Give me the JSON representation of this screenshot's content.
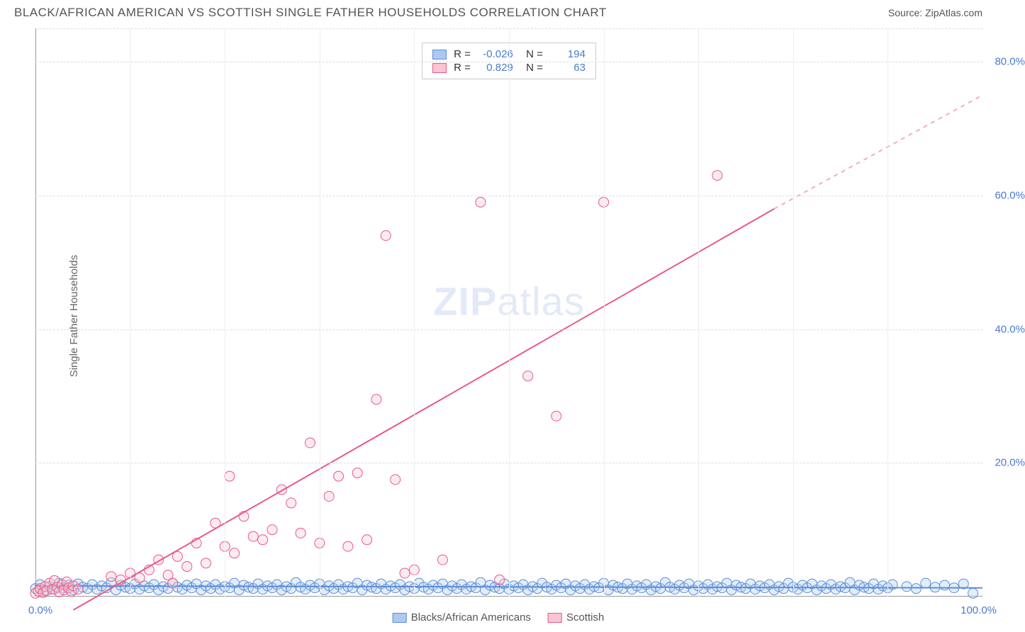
{
  "title": "BLACK/AFRICAN AMERICAN VS SCOTTISH SINGLE FATHER HOUSEHOLDS CORRELATION CHART",
  "source": "Source: ZipAtlas.com",
  "watermark_zip": "ZIP",
  "watermark_atlas": "atlas",
  "ylabel": "Single Father Households",
  "chart": {
    "type": "scatter",
    "xlim": [
      0,
      100
    ],
    "ylim": [
      0,
      85
    ],
    "y_ticks": [
      20,
      40,
      60,
      80
    ],
    "y_tick_labels": [
      "20.0%",
      "40.0%",
      "60.0%",
      "80.0%"
    ],
    "x_vgrid_step": 10,
    "x_min_label": "0.0%",
    "x_max_label": "100.0%",
    "background_color": "#ffffff",
    "grid_color": "#dddddd",
    "axis_label_color": "#4a7bd0",
    "marker_radius": 7,
    "marker_opacity": 0.35,
    "trend_line_width": 2,
    "series": [
      {
        "name": "Blacks/African Americans",
        "color_fill": "#aec9ef",
        "color_stroke": "#5b8fd6",
        "R": "-0.026",
        "N": "194",
        "trend": {
          "x1": 0,
          "y1": 1.6,
          "x2": 100,
          "y2": 1.3,
          "dashed": false
        },
        "points": [
          [
            0,
            1.2
          ],
          [
            0.5,
            1.8
          ],
          [
            1,
            0.9
          ],
          [
            1.5,
            1.5
          ],
          [
            2,
            1.1
          ],
          [
            2.5,
            2.0
          ],
          [
            3,
            1.3
          ],
          [
            3.5,
            1.7
          ],
          [
            4,
            1.0
          ],
          [
            4.5,
            1.9
          ],
          [
            5,
            1.4
          ],
          [
            5.5,
            1.2
          ],
          [
            6,
            1.8
          ],
          [
            6.5,
            1.1
          ],
          [
            7,
            1.6
          ],
          [
            7.5,
            1.3
          ],
          [
            8,
            2.1
          ],
          [
            8.5,
            1.0
          ],
          [
            9,
            1.7
          ],
          [
            9.5,
            1.4
          ],
          [
            10,
            1.2
          ],
          [
            10.5,
            1.9
          ],
          [
            11,
            1.1
          ],
          [
            11.5,
            1.6
          ],
          [
            12,
            1.3
          ],
          [
            12.5,
            1.8
          ],
          [
            13,
            1.0
          ],
          [
            13.5,
            1.5
          ],
          [
            14,
            1.2
          ],
          [
            14.5,
            2.0
          ],
          [
            15,
            1.4
          ],
          [
            15.5,
            1.1
          ],
          [
            16,
            1.7
          ],
          [
            16.5,
            1.3
          ],
          [
            17,
            1.9
          ],
          [
            17.5,
            1.0
          ],
          [
            18,
            1.6
          ],
          [
            18.5,
            1.2
          ],
          [
            19,
            1.8
          ],
          [
            19.5,
            1.1
          ],
          [
            20,
            1.5
          ],
          [
            20.5,
            1.3
          ],
          [
            21,
            2.0
          ],
          [
            21.5,
            1.0
          ],
          [
            22,
            1.7
          ],
          [
            22.5,
            1.4
          ],
          [
            23,
            1.2
          ],
          [
            23.5,
            1.9
          ],
          [
            24,
            1.1
          ],
          [
            24.5,
            1.6
          ],
          [
            25,
            1.3
          ],
          [
            25.5,
            1.8
          ],
          [
            26,
            1.0
          ],
          [
            26.5,
            1.5
          ],
          [
            27,
            1.2
          ],
          [
            27.5,
            2.1
          ],
          [
            28,
            1.4
          ],
          [
            28.5,
            1.1
          ],
          [
            29,
            1.7
          ],
          [
            29.5,
            1.3
          ],
          [
            30,
            1.9
          ],
          [
            30.5,
            1.0
          ],
          [
            31,
            1.6
          ],
          [
            31.5,
            1.2
          ],
          [
            32,
            1.8
          ],
          [
            32.5,
            1.1
          ],
          [
            33,
            1.5
          ],
          [
            33.5,
            1.3
          ],
          [
            34,
            2.0
          ],
          [
            34.5,
            1.0
          ],
          [
            35,
            1.7
          ],
          [
            35.5,
            1.4
          ],
          [
            36,
            1.2
          ],
          [
            36.5,
            1.9
          ],
          [
            37,
            1.1
          ],
          [
            37.5,
            1.6
          ],
          [
            38,
            1.3
          ],
          [
            38.5,
            1.8
          ],
          [
            39,
            1.0
          ],
          [
            39.5,
            1.5
          ],
          [
            40,
            1.2
          ],
          [
            40.5,
            2.0
          ],
          [
            41,
            1.4
          ],
          [
            41.5,
            1.1
          ],
          [
            42,
            1.7
          ],
          [
            42.5,
            1.3
          ],
          [
            43,
            1.9
          ],
          [
            43.5,
            1.0
          ],
          [
            44,
            1.6
          ],
          [
            44.5,
            1.2
          ],
          [
            45,
            1.8
          ],
          [
            45.5,
            1.1
          ],
          [
            46,
            1.5
          ],
          [
            46.5,
            1.3
          ],
          [
            47,
            2.1
          ],
          [
            47.5,
            1.0
          ],
          [
            48,
            1.7
          ],
          [
            48.5,
            1.4
          ],
          [
            49,
            1.2
          ],
          [
            49.5,
            1.9
          ],
          [
            50,
            1.1
          ],
          [
            50.5,
            1.6
          ],
          [
            51,
            1.3
          ],
          [
            51.5,
            1.8
          ],
          [
            52,
            1.0
          ],
          [
            52.5,
            1.5
          ],
          [
            53,
            1.2
          ],
          [
            53.5,
            2.0
          ],
          [
            54,
            1.4
          ],
          [
            54.5,
            1.1
          ],
          [
            55,
            1.7
          ],
          [
            55.5,
            1.3
          ],
          [
            56,
            1.9
          ],
          [
            56.5,
            1.0
          ],
          [
            57,
            1.6
          ],
          [
            57.5,
            1.2
          ],
          [
            58,
            1.8
          ],
          [
            58.5,
            1.1
          ],
          [
            59,
            1.5
          ],
          [
            59.5,
            1.3
          ],
          [
            60,
            2.0
          ],
          [
            60.5,
            1.0
          ],
          [
            61,
            1.7
          ],
          [
            61.5,
            1.4
          ],
          [
            62,
            1.2
          ],
          [
            62.5,
            1.9
          ],
          [
            63,
            1.1
          ],
          [
            63.5,
            1.6
          ],
          [
            64,
            1.3
          ],
          [
            64.5,
            1.8
          ],
          [
            65,
            1.0
          ],
          [
            65.5,
            1.5
          ],
          [
            66,
            1.2
          ],
          [
            66.5,
            2.1
          ],
          [
            67,
            1.4
          ],
          [
            67.5,
            1.1
          ],
          [
            68,
            1.7
          ],
          [
            68.5,
            1.3
          ],
          [
            69,
            1.9
          ],
          [
            69.5,
            1.0
          ],
          [
            70,
            1.6
          ],
          [
            70.5,
            1.2
          ],
          [
            71,
            1.8
          ],
          [
            71.5,
            1.1
          ],
          [
            72,
            1.5
          ],
          [
            72.5,
            1.3
          ],
          [
            73,
            2.0
          ],
          [
            73.5,
            1.0
          ],
          [
            74,
            1.7
          ],
          [
            74.5,
            1.4
          ],
          [
            75,
            1.2
          ],
          [
            75.5,
            1.9
          ],
          [
            76,
            1.1
          ],
          [
            76.5,
            1.6
          ],
          [
            77,
            1.3
          ],
          [
            77.5,
            1.8
          ],
          [
            78,
            1.0
          ],
          [
            78.5,
            1.5
          ],
          [
            79,
            1.2
          ],
          [
            79.5,
            2.0
          ],
          [
            80,
            1.4
          ],
          [
            80.5,
            1.1
          ],
          [
            81,
            1.7
          ],
          [
            81.5,
            1.3
          ],
          [
            82,
            1.9
          ],
          [
            82.5,
            1.0
          ],
          [
            83,
            1.6
          ],
          [
            83.5,
            1.2
          ],
          [
            84,
            1.8
          ],
          [
            84.5,
            1.1
          ],
          [
            85,
            1.5
          ],
          [
            85.5,
            1.3
          ],
          [
            86,
            2.1
          ],
          [
            86.5,
            1.0
          ],
          [
            87,
            1.7
          ],
          [
            87.5,
            1.4
          ],
          [
            88,
            1.2
          ],
          [
            88.5,
            1.9
          ],
          [
            89,
            1.1
          ],
          [
            89.5,
            1.6
          ],
          [
            90,
            1.3
          ],
          [
            90.5,
            1.8
          ],
          [
            92,
            1.5
          ],
          [
            93,
            1.2
          ],
          [
            94,
            2.0
          ],
          [
            95,
            1.4
          ],
          [
            96,
            1.7
          ],
          [
            97,
            1.3
          ],
          [
            98,
            1.9
          ],
          [
            99,
            0.5
          ]
        ]
      },
      {
        "name": "Scottish",
        "color_fill": "#f7c6d2",
        "color_stroke": "#e85a8a",
        "R": "0.829",
        "N": "63",
        "trend": {
          "x1": 4,
          "y1": -2,
          "x2": 78,
          "y2": 58,
          "dashed_after_x": 78,
          "dash_x2": 100,
          "dash_y2": 75
        },
        "points": [
          [
            0,
            0.5
          ],
          [
            0.3,
            0.8
          ],
          [
            0.5,
            1.2
          ],
          [
            0.8,
            0.6
          ],
          [
            1,
            1.5
          ],
          [
            1.2,
            0.9
          ],
          [
            1.5,
            2.0
          ],
          [
            1.8,
            1.1
          ],
          [
            2,
            2.4
          ],
          [
            2.3,
            1.4
          ],
          [
            2.5,
            0.7
          ],
          [
            2.8,
            1.8
          ],
          [
            3,
            1.0
          ],
          [
            3.3,
            2.2
          ],
          [
            3.5,
            1.3
          ],
          [
            3.8,
            0.8
          ],
          [
            4,
            1.6
          ],
          [
            4.5,
            1.1
          ],
          [
            8,
            3.0
          ],
          [
            9,
            2.5
          ],
          [
            10,
            3.5
          ],
          [
            11,
            2.8
          ],
          [
            12,
            4.0
          ],
          [
            13,
            5.5
          ],
          [
            14,
            3.2
          ],
          [
            14.5,
            2.0
          ],
          [
            15,
            6.0
          ],
          [
            16,
            4.5
          ],
          [
            17,
            8.0
          ],
          [
            18,
            5.0
          ],
          [
            19,
            11.0
          ],
          [
            20,
            7.5
          ],
          [
            20.5,
            18.0
          ],
          [
            21,
            6.5
          ],
          [
            22,
            12.0
          ],
          [
            23,
            9.0
          ],
          [
            24,
            8.5
          ],
          [
            25,
            10.0
          ],
          [
            26,
            16.0
          ],
          [
            27,
            14.0
          ],
          [
            28,
            9.5
          ],
          [
            29,
            23.0
          ],
          [
            30,
            8.0
          ],
          [
            31,
            15.0
          ],
          [
            32,
            18.0
          ],
          [
            33,
            7.5
          ],
          [
            34,
            18.5
          ],
          [
            35,
            8.5
          ],
          [
            36,
            29.5
          ],
          [
            37,
            54.0
          ],
          [
            38,
            17.5
          ],
          [
            39,
            3.5
          ],
          [
            40,
            4.0
          ],
          [
            43,
            5.5
          ],
          [
            47,
            59.0
          ],
          [
            49,
            2.5
          ],
          [
            52,
            33.0
          ],
          [
            55,
            27.0
          ],
          [
            60,
            59.0
          ],
          [
            72,
            63.0
          ]
        ]
      }
    ]
  },
  "bottom_legend": {
    "items": [
      {
        "label": "Blacks/African Americans",
        "fill": "#aec9ef",
        "stroke": "#5b8fd6"
      },
      {
        "label": "Scottish",
        "fill": "#f7c6d2",
        "stroke": "#e85a8a"
      }
    ]
  }
}
